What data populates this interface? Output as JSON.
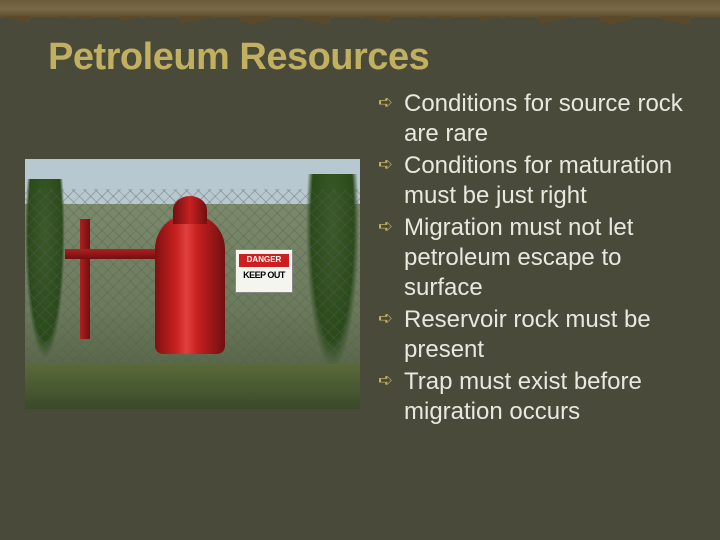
{
  "title": "Petroleum Resources",
  "colors": {
    "background": "#4a4a3a",
    "title": "#c0b060",
    "bullet_text": "#e8e8e0",
    "bullet_marker": "#c0b060",
    "tank": "#c82020",
    "sign_bg": "#f5f5f0",
    "danger_bg": "#cc2020"
  },
  "typography": {
    "title_fontsize": 38,
    "title_weight": "bold",
    "bullet_fontsize": 24
  },
  "image": {
    "description": "outdoor-gas-wellhead",
    "sign_line1": "DANGER",
    "sign_line2": "KEEP OUT"
  },
  "bullets": [
    "Conditions for source rock are rare",
    "Conditions for maturation must be just right",
    "Migration must not let petroleum escape to surface",
    "Reservoir rock must be present",
    "Trap must exist before migration occurs"
  ]
}
